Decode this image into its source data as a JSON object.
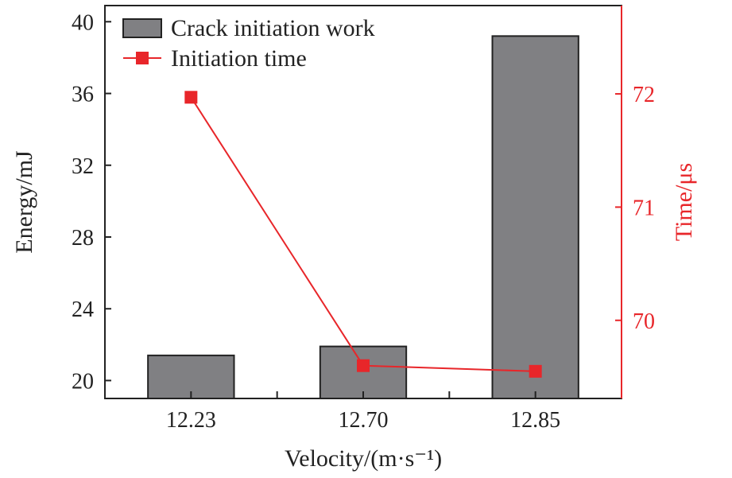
{
  "chart_data": {
    "type": "bar+line",
    "categories": [
      "12.23",
      "12.70",
      "12.85"
    ],
    "xlabel": "Velocity/(m·s⁻¹)",
    "ylabel": "Energy/mJ",
    "ylabel_right": "Time/μs",
    "ylim": [
      19.0,
      40.9
    ],
    "ylim_right": [
      69.31,
      72.78
    ],
    "yticks": [
      20,
      24,
      28,
      32,
      36,
      40
    ],
    "yticks_right": [
      70,
      71,
      72
    ],
    "grid": false,
    "legend_position": "top-left",
    "series": [
      {
        "name": "Crack initiation work",
        "type": "bar",
        "axis": "left",
        "values": [
          21.4,
          21.9,
          39.2
        ],
        "color": "#808083"
      },
      {
        "name": "Initiation time",
        "type": "line",
        "axis": "right",
        "marker": "square",
        "values": [
          71.97,
          69.6,
          69.55
        ],
        "color": "#e8262a"
      }
    ]
  }
}
